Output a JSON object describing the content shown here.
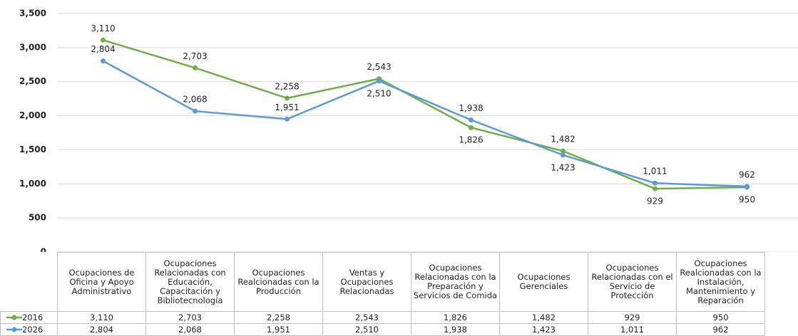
{
  "chart_data": {
    "type": "line",
    "categories": [
      "Ocupaciones de Oficina y Apoyo Administrativo",
      "Ocupaciones Relacionadas con Educación, Capacitación y Bibliotecnología",
      "Ocupaciones Realcionadas con la Producción",
      "Ventas y Ocupaciones Relacionadas",
      "Ocupaciones Relacionadas con la Preparación y Servicios de Comida",
      "Ocupaciones Gerenciales",
      "Ocupaciones Relacionadas con el Servicio de Protección",
      "Ocupaciones Realcionadas con la Instalación, Mantenimiento y Reparación"
    ],
    "series": [
      {
        "name": "2016",
        "color": "#70ad47",
        "values": [
          3110,
          2703,
          2258,
          2543,
          1826,
          1482,
          929,
          950
        ],
        "value_labels": [
          "3,110",
          "2,703",
          "2,258",
          "2,543",
          "1,826",
          "1,482",
          "929",
          "950"
        ]
      },
      {
        "name": "2026",
        "color": "#5b9bd5",
        "values": [
          2804,
          2068,
          1951,
          2510,
          1938,
          1423,
          1011,
          962
        ],
        "value_labels": [
          "2,804",
          "2,068",
          "1,951",
          "2,510",
          "1,938",
          "1,423",
          "1,011",
          "962"
        ]
      }
    ],
    "ylim": [
      0,
      3500
    ],
    "yticks": [
      0,
      {
        "value": 500,
        "label": "500"
      },
      {
        "value": 1000,
        "label": "1,000"
      },
      {
        "value": 1500,
        "label": "1,500"
      },
      {
        "value": 2000,
        "label": "2,000"
      },
      {
        "value": 2500,
        "label": "2,500"
      },
      {
        "value": 3000,
        "label": "3,000"
      },
      {
        "value": 3500,
        "label": "3,500"
      }
    ],
    "grid": true
  }
}
